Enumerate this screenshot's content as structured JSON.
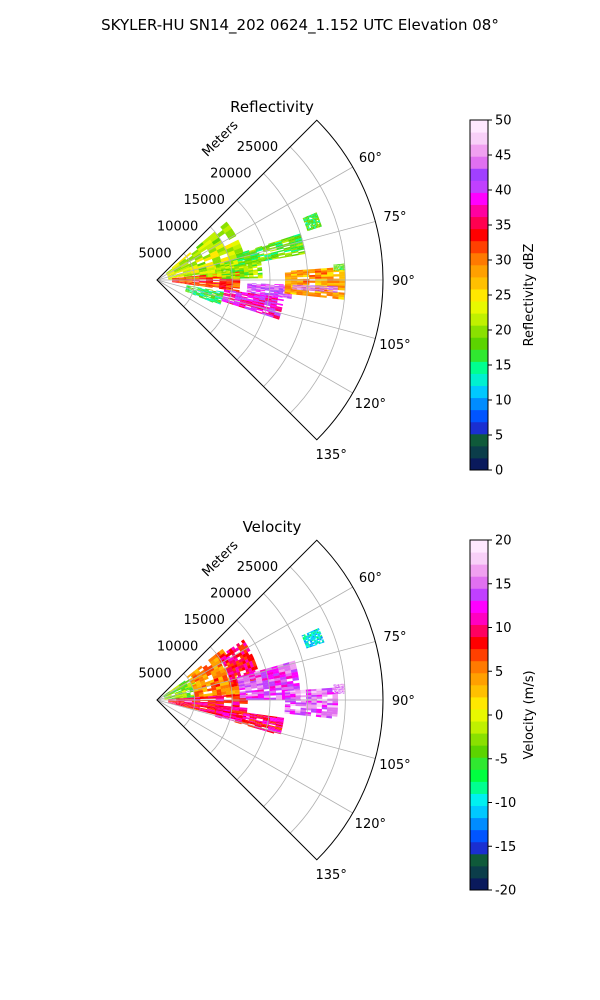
{
  "figure": {
    "title": "SKYLER-HU  SN14_202  0624_1.152 UTC Elevation 08°"
  },
  "chart_data": [
    {
      "type": "heatmap",
      "subtype": "polar-sector",
      "title": "Reflectivity",
      "radial_label": "Meters",
      "radial_ticks": [
        5000,
        10000,
        15000,
        20000,
        25000
      ],
      "radial_range": [
        0,
        30000
      ],
      "angle_ticks": [
        "60°",
        "75°",
        "90°",
        "105°",
        "120°",
        "135°"
      ],
      "angle_tick_values": [
        60,
        75,
        90,
        105,
        120,
        135
      ],
      "angle_range": [
        45,
        135
      ],
      "grid": true,
      "colorbar": {
        "label": "Reflectivity dBZ",
        "ticks": [
          0,
          5,
          10,
          15,
          20,
          25,
          30,
          35,
          40,
          45,
          50
        ],
        "range": [
          0,
          50
        ],
        "colors": [
          "#0a1a5c",
          "#0b3d4a",
          "#0f5a3a",
          "#1a2fd1",
          "#0055ff",
          "#008cff",
          "#00c8ff",
          "#00f0d0",
          "#00ff90",
          "#30e830",
          "#5cd400",
          "#8ae000",
          "#c0f000",
          "#e8f800",
          "#ffe800",
          "#ffc000",
          "#ffa000",
          "#ff7a00",
          "#ff4000",
          "#ff0000",
          "#ff0050",
          "#ff00a0",
          "#ff00ff",
          "#c040ff",
          "#a040ff",
          "#e070f0",
          "#f0a0f0",
          "#f8d0f8",
          "#ffe8ff"
        ]
      },
      "echoes": [
        {
          "r": [
            1500,
            12000
          ],
          "az": [
            50,
            88
          ],
          "value": 22
        },
        {
          "r": [
            2000,
            11000
          ],
          "az": [
            84,
            98
          ],
          "value": 32
        },
        {
          "r": [
            8000,
            14000
          ],
          "az": [
            75,
            89
          ],
          "value": 20
        },
        {
          "r": [
            11000,
            20000
          ],
          "az": [
            72,
            80
          ],
          "value": 18
        },
        {
          "r": [
            9000,
            17000
          ],
          "az": [
            98,
            108
          ],
          "value": 38
        },
        {
          "r": [
            12000,
            18000
          ],
          "az": [
            92,
            98
          ],
          "value": 42
        },
        {
          "r": [
            17000,
            25000
          ],
          "az": [
            86,
            96
          ],
          "value": 28
        },
        {
          "r": [
            18000,
            24000
          ],
          "az": [
            92,
            94
          ],
          "value": 44
        },
        {
          "r": [
            21000,
            23000
          ],
          "az": [
            67,
            72
          ],
          "value": 17
        },
        {
          "r": [
            23500,
            25000
          ],
          "az": [
            85,
            87
          ],
          "value": 18
        },
        {
          "r": [
            4000,
            9000
          ],
          "az": [
            100,
            112
          ],
          "value": 16
        }
      ]
    },
    {
      "type": "heatmap",
      "subtype": "polar-sector",
      "title": "Velocity",
      "radial_label": "Meters",
      "radial_ticks": [
        5000,
        10000,
        15000,
        20000,
        25000
      ],
      "radial_range": [
        0,
        30000
      ],
      "angle_ticks": [
        "60°",
        "75°",
        "90°",
        "105°",
        "120°",
        "135°"
      ],
      "angle_tick_values": [
        60,
        75,
        90,
        105,
        120,
        135
      ],
      "angle_range": [
        45,
        135
      ],
      "grid": true,
      "colorbar": {
        "label": "Velocity (m/s)",
        "ticks": [
          -20,
          -15,
          -10,
          -5,
          0,
          5,
          10,
          15,
          20
        ],
        "range": [
          -20,
          20
        ],
        "colors": [
          "#0a1a5c",
          "#0b3d4a",
          "#0f5a3a",
          "#1a2fd1",
          "#0055ff",
          "#008cff",
          "#00c8ff",
          "#00f0f0",
          "#00ff90",
          "#00ff40",
          "#30e830",
          "#5cd400",
          "#8ae000",
          "#c0f000",
          "#e8f800",
          "#ffe800",
          "#ffc000",
          "#ffa000",
          "#ff7a00",
          "#ff4000",
          "#ff0000",
          "#ff0060",
          "#ff00c0",
          "#ff00ff",
          "#c040ff",
          "#e070f0",
          "#f0a0f0",
          "#f8d0f8",
          "#ffe8ff"
        ]
      },
      "echoes": [
        {
          "r": [
            1000,
            6000
          ],
          "az": [
            55,
            86
          ],
          "value": -3
        },
        {
          "r": [
            5000,
            11000
          ],
          "az": [
            52,
            88
          ],
          "value": 5
        },
        {
          "r": [
            10000,
            14000
          ],
          "az": [
            55,
            80
          ],
          "value": 9
        },
        {
          "r": [
            1500,
            12000
          ],
          "az": [
            86,
            104
          ],
          "value": 9
        },
        {
          "r": [
            8000,
            17000
          ],
          "az": [
            98,
            106
          ],
          "value": 10
        },
        {
          "r": [
            11000,
            19000
          ],
          "az": [
            74,
            90
          ],
          "value": 14
        },
        {
          "r": [
            17000,
            24000
          ],
          "az": [
            86,
            96
          ],
          "value": 15
        },
        {
          "r": [
            21000,
            23500
          ],
          "az": [
            66,
            71
          ],
          "value": -10
        },
        {
          "r": [
            23500,
            25000
          ],
          "az": [
            85,
            88
          ],
          "value": 16
        }
      ]
    }
  ]
}
